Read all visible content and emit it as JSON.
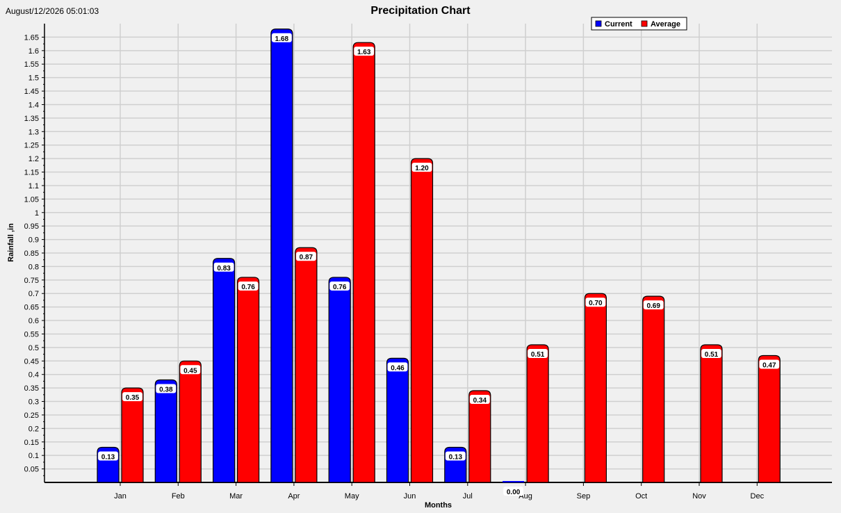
{
  "timestamp": "August/12/2026 05:01:03",
  "chart_data": {
    "type": "bar",
    "title": "Precipitation Chart",
    "xlabel": "Months",
    "ylabel": "Rainfall ,in",
    "ylim": [
      0,
      1.7
    ],
    "ytick_step": 0.05,
    "grid": true,
    "legend_position": "top-right",
    "categories": [
      "Jan",
      "Feb",
      "Mar",
      "Apr",
      "May",
      "Jun",
      "Jul",
      "Aug",
      "Sep",
      "Oct",
      "Nov",
      "Dec"
    ],
    "series": [
      {
        "name": "Current",
        "color": "#0000ff",
        "values": [
          0.13,
          0.38,
          0.83,
          1.68,
          0.76,
          0.46,
          0.13,
          0.0,
          null,
          null,
          null,
          null
        ],
        "labels": [
          "0.13",
          "0.38",
          "0.83",
          "1.68",
          "0.76",
          "0.46",
          "0.13",
          "0.00",
          null,
          null,
          null,
          null
        ]
      },
      {
        "name": "Average",
        "color": "#ff0000",
        "values": [
          0.35,
          0.45,
          0.76,
          0.87,
          1.63,
          1.2,
          0.34,
          0.51,
          0.7,
          0.69,
          0.51,
          0.47
        ],
        "labels": [
          "0.35",
          "0.45",
          "0.76",
          "0.87",
          "1.63",
          "1.20",
          "0.34",
          "0.51",
          "0.70",
          "0.69",
          "0.51",
          "0.47"
        ]
      }
    ]
  }
}
